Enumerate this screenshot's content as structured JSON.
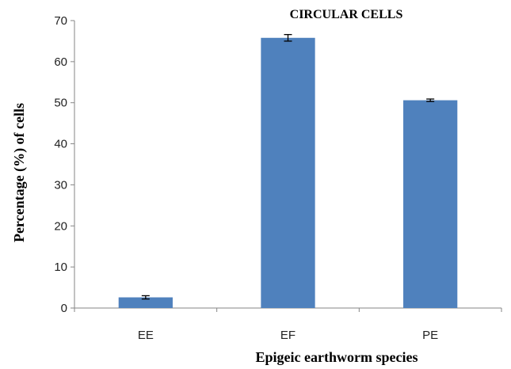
{
  "chart_data": {
    "type": "bar",
    "title": "CIRCULAR CELLS",
    "xlabel": "Epigeic earthworm species",
    "ylabel": "Percentage (%) of cells",
    "categories": [
      "EE",
      "EF",
      "PE"
    ],
    "values": [
      2.6,
      65.8,
      50.6
    ],
    "error": [
      0.4,
      0.8,
      0.3
    ],
    "ylim": [
      0,
      70
    ],
    "yticks": [
      "0",
      "10",
      "20",
      "30",
      "40",
      "50",
      "60",
      "70"
    ],
    "grid": false,
    "bar_color": "#4f81bd",
    "error_color": "#000000",
    "axis_color": "#868686"
  }
}
